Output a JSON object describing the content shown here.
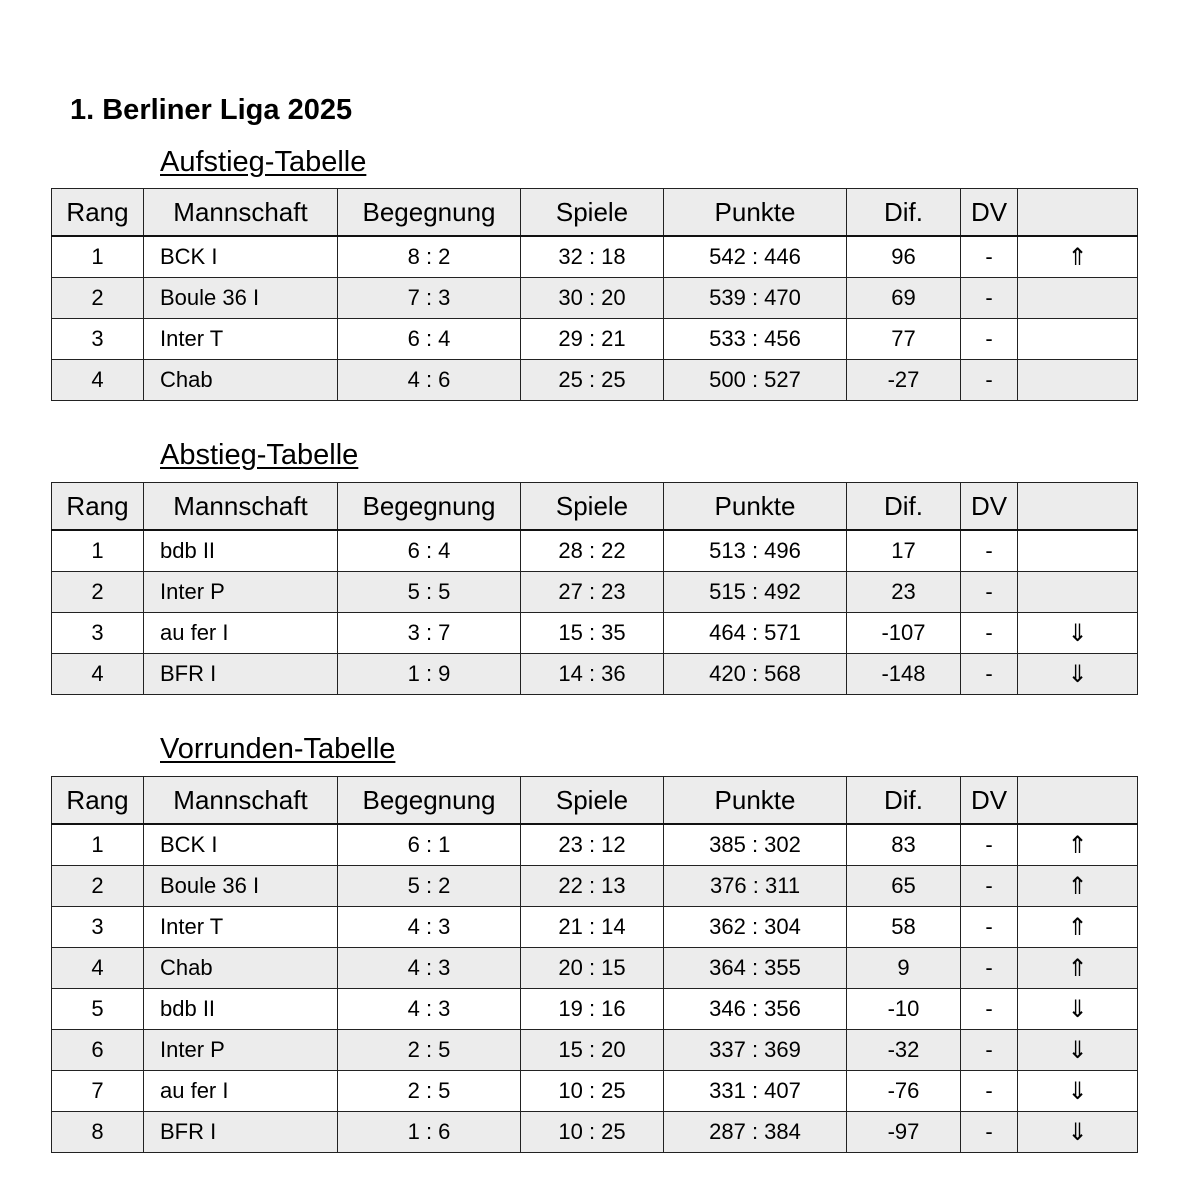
{
  "title": "1. Berliner Liga 2025",
  "columns": [
    "Rang",
    "Mannschaft",
    "Begegnung",
    "Spiele",
    "Punkte",
    "Dif.",
    "DV",
    ""
  ],
  "tables": [
    {
      "heading": "Aufstieg-Tabelle",
      "rows": [
        [
          "1",
          "BCK I",
          "8 : 2",
          "32 : 18",
          "542 : 446",
          "96",
          "-",
          "⇑"
        ],
        [
          "2",
          "Boule 36 I",
          "7 : 3",
          "30 : 20",
          "539 : 470",
          "69",
          "-",
          ""
        ],
        [
          "3",
          "Inter T",
          "6 : 4",
          "29 : 21",
          "533 : 456",
          "77",
          "-",
          ""
        ],
        [
          "4",
          "Chab",
          "4 : 6",
          "25 : 25",
          "500 : 527",
          "-27",
          "-",
          ""
        ]
      ]
    },
    {
      "heading": "Abstieg-Tabelle",
      "rows": [
        [
          "1",
          "bdb II",
          "6 : 4",
          "28 : 22",
          "513 : 496",
          "17",
          "-",
          ""
        ],
        [
          "2",
          "Inter P",
          "5 : 5",
          "27 : 23",
          "515 : 492",
          "23",
          "-",
          ""
        ],
        [
          "3",
          "au fer I",
          "3 : 7",
          "15 : 35",
          "464 : 571",
          "-107",
          "-",
          "⇓"
        ],
        [
          "4",
          "BFR I",
          "1 : 9",
          "14 : 36",
          "420 : 568",
          "-148",
          "-",
          "⇓"
        ]
      ]
    },
    {
      "heading": "Vorrunden-Tabelle",
      "rows": [
        [
          "1",
          "BCK I",
          "6 : 1",
          "23 : 12",
          "385 : 302",
          "83",
          "-",
          "⇑"
        ],
        [
          "2",
          "Boule 36 I",
          "5 : 2",
          "22 : 13",
          "376 : 311",
          "65",
          "-",
          "⇑"
        ],
        [
          "3",
          "Inter T",
          "4 : 3",
          "21 : 14",
          "362 : 304",
          "58",
          "-",
          "⇑"
        ],
        [
          "4",
          "Chab",
          "4 : 3",
          "20 : 15",
          "364 : 355",
          "9",
          "-",
          "⇑"
        ],
        [
          "5",
          "bdb II",
          "4 : 3",
          "19 : 16",
          "346 : 356",
          "-10",
          "-",
          "⇓"
        ],
        [
          "6",
          "Inter P",
          "2 : 5",
          "15 : 20",
          "337 : 369",
          "-32",
          "-",
          "⇓"
        ],
        [
          "7",
          "au fer I",
          "2 : 5",
          "10 : 25",
          "331 : 407",
          "-76",
          "-",
          "⇓"
        ],
        [
          "8",
          "BFR I",
          "1 : 6",
          "10 : 25",
          "287 : 384",
          "-97",
          "-",
          "⇓"
        ]
      ]
    }
  ]
}
